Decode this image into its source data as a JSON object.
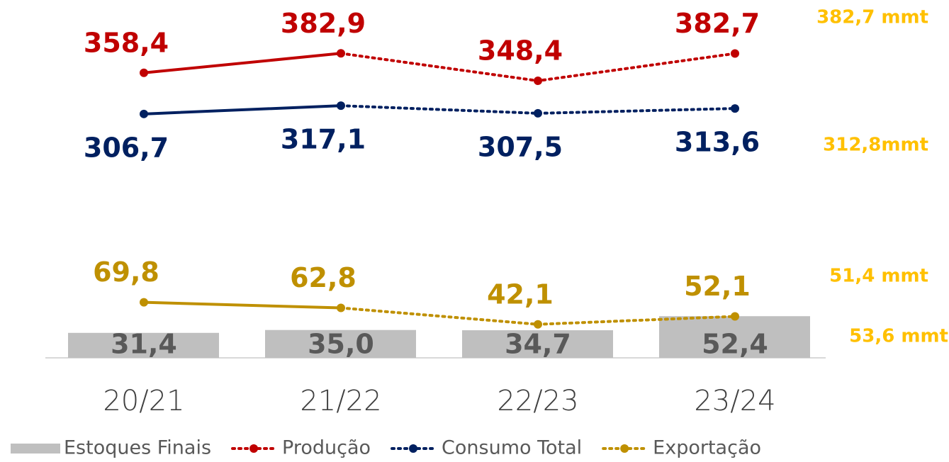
{
  "chart_data": {
    "type": "combo",
    "categories": [
      "20/21",
      "21/22",
      "22/23",
      "23/24"
    ],
    "ylim": [
      0,
      450
    ],
    "dashed_from": 1,
    "series": [
      {
        "name": "Estoques Finais",
        "type": "bar",
        "color": "#bfbfbf",
        "label_color": "#595959",
        "values": [
          31.4,
          35.0,
          34.7,
          52.4
        ],
        "value_labels": [
          "31,4",
          "35,0",
          "34,7",
          "52,4"
        ]
      },
      {
        "name": "Produção",
        "type": "line",
        "color": "#c00000",
        "label_position": "above",
        "values": [
          358.4,
          382.9,
          348.4,
          382.7
        ],
        "value_labels": [
          "358,4",
          "382,9",
          "348,4",
          "382,7"
        ]
      },
      {
        "name": "Consumo Total",
        "type": "line",
        "color": "#002060",
        "label_position": "below",
        "values": [
          306.7,
          317.1,
          307.5,
          313.6
        ],
        "value_labels": [
          "306,7",
          "317,1",
          "307,5",
          "313,6"
        ]
      },
      {
        "name": "Exportação",
        "type": "line",
        "color": "#bf9000",
        "label_position": "above",
        "values": [
          69.8,
          62.8,
          42.1,
          52.1
        ],
        "value_labels": [
          "69,8",
          "62,8",
          "42,1",
          "52,1"
        ]
      }
    ],
    "annotations": [
      "382,7 mmt",
      "312,8mmt",
      "51,4 mmt",
      "53,6 mmt"
    ],
    "annotation_color": "#ffc000"
  }
}
